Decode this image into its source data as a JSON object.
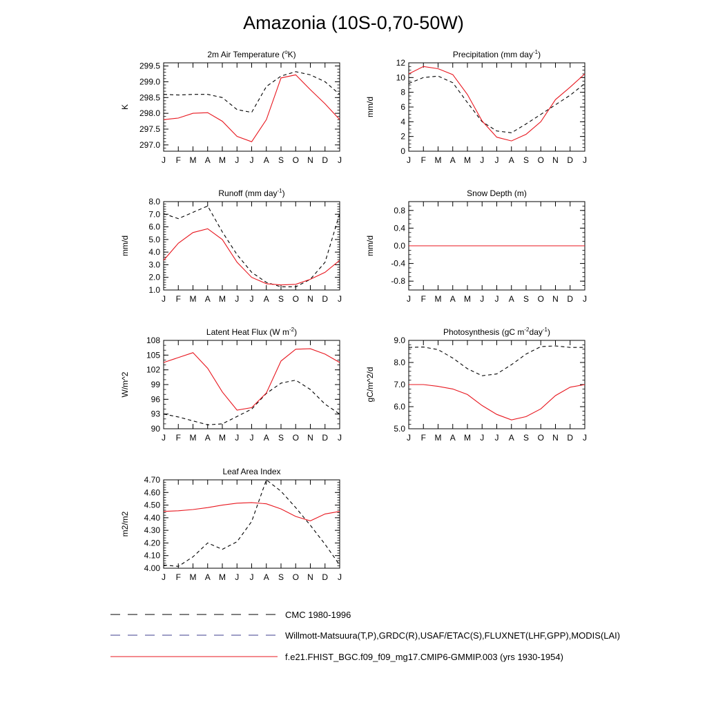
{
  "title": "Amazonia (10S-0,70-50W)",
  "months": [
    "J",
    "F",
    "M",
    "A",
    "M",
    "J",
    "J",
    "A",
    "S",
    "O",
    "N",
    "D",
    "J"
  ],
  "colors": {
    "model": "#e8161e",
    "obs": "#000000",
    "obs_alt": "#3e3c8e"
  },
  "legend": [
    {
      "label": "CMC 1980-1996",
      "style": "dashed",
      "color": "#000000"
    },
    {
      "label": "Willmott-Matsuura(T,P),GRDC(R),USAF/ETAC(S),FLUXNET(LHF,GPP),MODIS(LAI)",
      "style": "dashed",
      "color": "#3e3c8e"
    },
    {
      "label": "f.e21.FHIST_BGC.f09_f09_mg17.CMIP6-GMMIP.003 (yrs 1930-1954)",
      "style": "solid",
      "color": "#e8161e"
    }
  ],
  "chart_data": [
    {
      "type": "line",
      "title": "2m Air Temperature (°K)",
      "title_parts": [
        "2m Air Temperature (",
        "o",
        "K)"
      ],
      "ylabel": "K",
      "ylim": [
        296.8,
        299.6
      ],
      "yticks": [
        297.0,
        297.5,
        298.0,
        298.5,
        299.0,
        299.5
      ],
      "ytick_labels": [
        "297.0",
        "297.5",
        "298.0",
        "298.5",
        "299.0",
        "299.5"
      ],
      "yminor": 0.1,
      "categories": [
        "J",
        "F",
        "M",
        "A",
        "M",
        "J",
        "J",
        "A",
        "S",
        "O",
        "N",
        "D",
        "J"
      ],
      "series": [
        {
          "role": "model",
          "values": [
            297.8,
            297.85,
            298.0,
            298.02,
            297.75,
            297.27,
            297.1,
            297.8,
            299.12,
            299.22,
            298.75,
            298.3,
            297.8
          ]
        },
        {
          "role": "obs",
          "values": [
            298.6,
            298.58,
            298.6,
            298.6,
            298.5,
            298.12,
            298.03,
            298.85,
            299.18,
            299.32,
            299.22,
            299.0,
            298.6
          ]
        }
      ]
    },
    {
      "type": "line",
      "title": "Precipitation (mm day-1)",
      "title_parts": [
        "Precipitation (mm day",
        "-1",
        ")"
      ],
      "ylabel": "mm/d",
      "ylim": [
        0,
        12
      ],
      "yticks": [
        0,
        2,
        4,
        6,
        8,
        10,
        12
      ],
      "ytick_labels": [
        "0",
        "2",
        "4",
        "6",
        "8",
        "10",
        "12"
      ],
      "yminor": 0.5,
      "categories": [
        "J",
        "F",
        "M",
        "A",
        "M",
        "J",
        "J",
        "A",
        "S",
        "O",
        "N",
        "D",
        "J"
      ],
      "series": [
        {
          "role": "model",
          "values": [
            10.5,
            11.5,
            11.2,
            10.4,
            7.7,
            4.1,
            1.9,
            1.4,
            2.3,
            4.0,
            7.0,
            8.7,
            10.5
          ]
        },
        {
          "role": "obs",
          "values": [
            9.2,
            10.0,
            10.2,
            9.3,
            6.6,
            4.0,
            2.75,
            2.5,
            3.7,
            5.0,
            6.3,
            7.6,
            9.2
          ]
        }
      ]
    },
    {
      "type": "line",
      "title": "Runoff (mm day-1)",
      "title_parts": [
        "Runoff (mm day",
        "-1",
        ")"
      ],
      "ylabel": "mm/d",
      "ylim": [
        1.0,
        8.0
      ],
      "yticks": [
        1.0,
        2.0,
        3.0,
        4.0,
        5.0,
        6.0,
        7.0,
        8.0
      ],
      "ytick_labels": [
        "1.0",
        "2.0",
        "3.0",
        "4.0",
        "5.0",
        "6.0",
        "7.0",
        "8.0"
      ],
      "yminor": 0.2,
      "categories": [
        "J",
        "F",
        "M",
        "A",
        "M",
        "J",
        "J",
        "A",
        "S",
        "O",
        "N",
        "D",
        "J"
      ],
      "series": [
        {
          "role": "model",
          "values": [
            3.35,
            4.7,
            5.55,
            5.85,
            5.0,
            3.2,
            2.0,
            1.5,
            1.4,
            1.45,
            1.85,
            2.4,
            3.35
          ]
        },
        {
          "role": "obs",
          "values": [
            7.05,
            6.65,
            7.15,
            7.65,
            5.6,
            3.8,
            2.4,
            1.6,
            1.25,
            1.25,
            1.85,
            3.2,
            7.05
          ]
        }
      ]
    },
    {
      "type": "line",
      "title": "Snow Depth (m)",
      "title_parts": [
        "Snow Depth (m)"
      ],
      "ylabel": "mm/d",
      "ylim": [
        -1.0,
        1.0
      ],
      "yticks": [
        -0.8,
        -0.4,
        0.0,
        0.4,
        0.8
      ],
      "ytick_labels": [
        "-0.8",
        "-0.4",
        "0.0",
        "0.4",
        "0.8"
      ],
      "yminor": 0.1,
      "categories": [
        "J",
        "F",
        "M",
        "A",
        "M",
        "J",
        "J",
        "A",
        "S",
        "O",
        "N",
        "D",
        "J"
      ],
      "series": [
        {
          "role": "model",
          "values": [
            0,
            0,
            0,
            0,
            0,
            0,
            0,
            0,
            0,
            0,
            0,
            0,
            0
          ]
        },
        {
          "role": "obs_alt",
          "values": [
            0,
            0,
            0,
            0,
            0,
            0,
            0,
            0,
            0,
            0,
            0,
            0,
            0
          ]
        }
      ]
    },
    {
      "type": "line",
      "title": "Latent Heat Flux (W m-2)",
      "title_parts": [
        "Latent Heat Flux (W m",
        "-2",
        ")"
      ],
      "ylabel": "W/m^2",
      "ylim": [
        90,
        108
      ],
      "yticks": [
        90,
        93,
        96,
        99,
        102,
        105,
        108
      ],
      "ytick_labels": [
        "90",
        "93",
        "96",
        "99",
        "102",
        "105",
        "108"
      ],
      "yminor": 1,
      "categories": [
        "J",
        "F",
        "M",
        "A",
        "M",
        "J",
        "J",
        "A",
        "S",
        "O",
        "N",
        "D",
        "J"
      ],
      "series": [
        {
          "role": "model",
          "values": [
            103.5,
            104.5,
            105.5,
            102.3,
            97.5,
            93.8,
            94.3,
            97.3,
            103.8,
            106.2,
            106.3,
            105.2,
            103.5
          ]
        },
        {
          "role": "obs",
          "values": [
            93.0,
            92.4,
            91.6,
            90.8,
            91.0,
            92.5,
            94.0,
            97.2,
            99.3,
            99.9,
            98.0,
            95.0,
            93.0
          ]
        }
      ]
    },
    {
      "type": "line",
      "title": "Photosynthesis (gC m-2day-1)",
      "title_parts": [
        "Photosynthesis (gC m",
        "-2",
        "day",
        "-1",
        ")"
      ],
      "ylabel": "gC/m^2/d",
      "ylim": [
        5.0,
        9.0
      ],
      "yticks": [
        5.0,
        6.0,
        7.0,
        8.0,
        9.0
      ],
      "ytick_labels": [
        "5.0",
        "6.0",
        "7.0",
        "8.0",
        "9.0"
      ],
      "yminor": 0.2,
      "categories": [
        "J",
        "F",
        "M",
        "A",
        "M",
        "J",
        "J",
        "A",
        "S",
        "O",
        "N",
        "D",
        "J"
      ],
      "series": [
        {
          "role": "model",
          "values": [
            7.0,
            7.0,
            6.92,
            6.8,
            6.55,
            6.05,
            5.65,
            5.4,
            5.55,
            5.9,
            6.5,
            6.88,
            7.0
          ]
        },
        {
          "role": "obs",
          "values": [
            8.68,
            8.7,
            8.58,
            8.2,
            7.72,
            7.4,
            7.48,
            7.9,
            8.38,
            8.72,
            8.75,
            8.68,
            8.68
          ]
        }
      ]
    },
    {
      "type": "line",
      "title": "Leaf Area Index",
      "title_parts": [
        "Leaf Area Index"
      ],
      "ylabel": "m2/m2",
      "ylim": [
        4.0,
        4.7
      ],
      "yticks": [
        4.0,
        4.1,
        4.2,
        4.3,
        4.4,
        4.5,
        4.6,
        4.7
      ],
      "ytick_labels": [
        "4.00",
        "4.10",
        "4.20",
        "4.30",
        "4.40",
        "4.50",
        "4.60",
        "4.70"
      ],
      "yminor": 0.02,
      "categories": [
        "J",
        "F",
        "M",
        "A",
        "M",
        "J",
        "J",
        "A",
        "S",
        "O",
        "N",
        "D",
        "J"
      ],
      "series": [
        {
          "role": "model",
          "values": [
            4.45,
            4.455,
            4.465,
            4.48,
            4.5,
            4.515,
            4.52,
            4.51,
            4.47,
            4.41,
            4.375,
            4.43,
            4.45
          ]
        },
        {
          "role": "obs",
          "values": [
            4.025,
            4.015,
            4.09,
            4.2,
            4.15,
            4.21,
            4.37,
            4.7,
            4.61,
            4.48,
            4.34,
            4.19,
            4.025
          ]
        }
      ]
    }
  ]
}
